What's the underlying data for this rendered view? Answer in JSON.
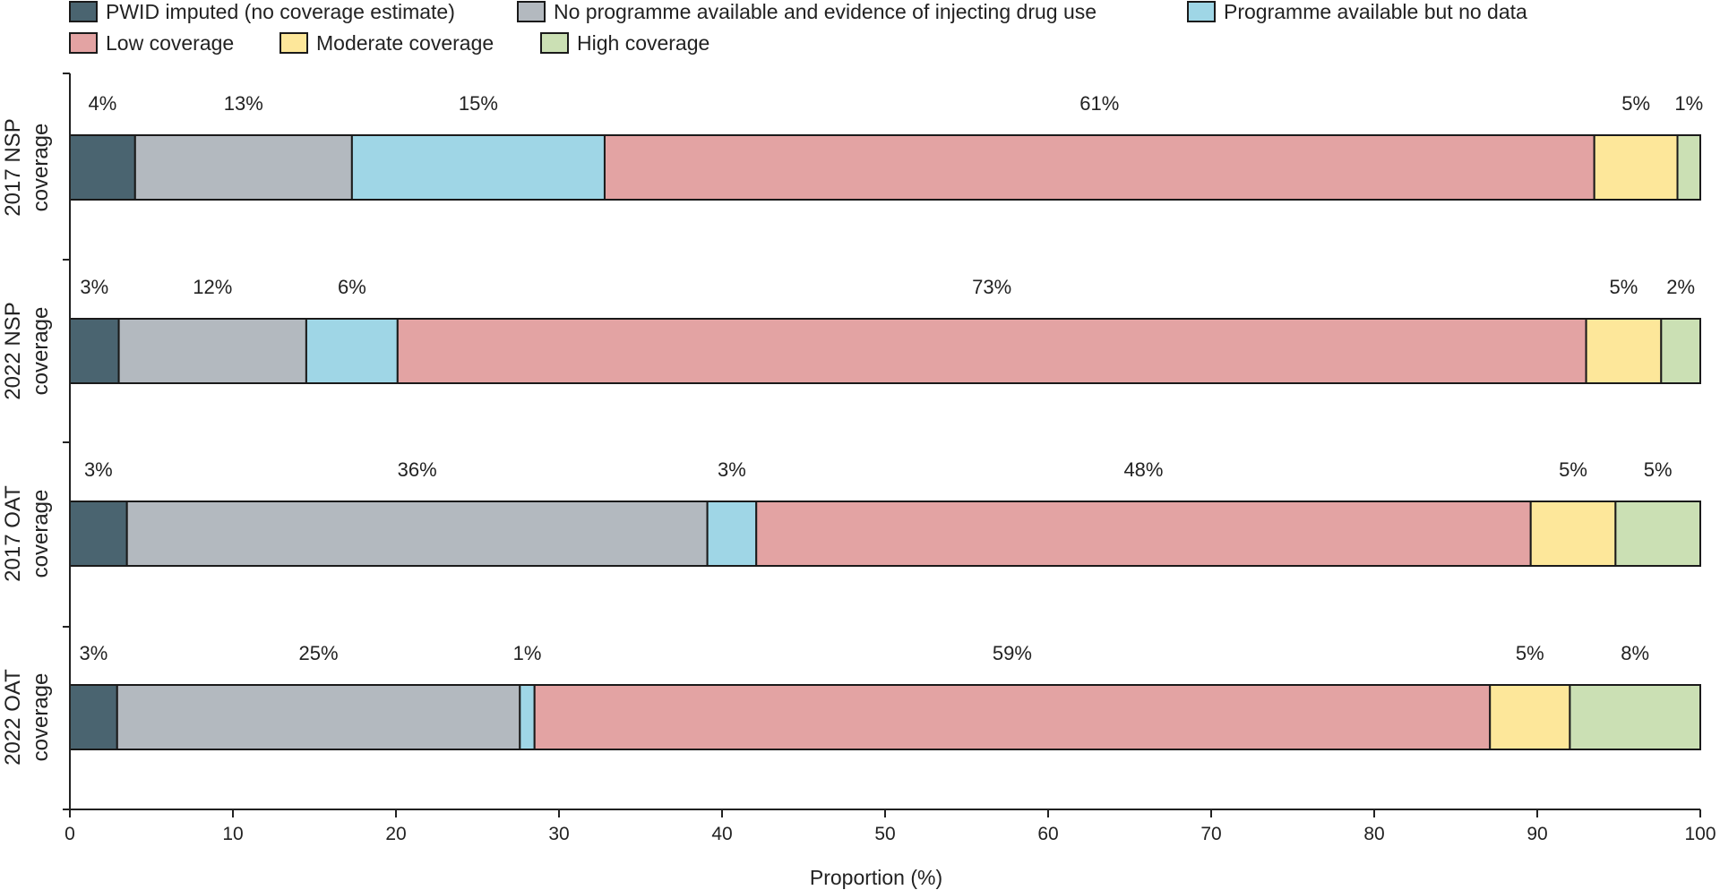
{
  "chart_data": {
    "type": "bar",
    "orientation": "horizontal",
    "stacked": true,
    "title": "",
    "xlabel": "Proportion (%)",
    "ylabel": "",
    "xlim": [
      0,
      100
    ],
    "xticks": [
      0,
      10,
      20,
      30,
      40,
      50,
      60,
      70,
      80,
      90,
      100
    ],
    "grid": false,
    "legend_position": "top",
    "series": [
      {
        "name": "PWID imputed (no coverage estimate)",
        "color": "#4a6470"
      },
      {
        "name": "No programme available and evidence of injecting drug use",
        "color": "#b3b9bf"
      },
      {
        "name": "Programme available but no data",
        "color": "#9fd6e6"
      },
      {
        "name": "Low coverage",
        "color": "#e3a3a3"
      },
      {
        "name": "Moderate coverage",
        "color": "#fde79a"
      },
      {
        "name": "High coverage",
        "color": "#cbe0b4"
      }
    ],
    "bars": [
      {
        "label_line1": "2017 NSP",
        "label_line2": "coverage",
        "values": [
          4.0,
          13.3,
          15.5,
          60.7,
          5.1,
          1.4
        ],
        "labels": [
          "4%",
          "13%",
          "15%",
          "61%",
          "5%",
          "1%"
        ]
      },
      {
        "label_line1": "2022 NSP",
        "label_line2": "coverage",
        "values": [
          3.0,
          11.5,
          5.6,
          72.9,
          4.6,
          2.4
        ],
        "labels": [
          "3%",
          "12%",
          "6%",
          "73%",
          "5%",
          "2%"
        ]
      },
      {
        "label_line1": "2017 OAT",
        "label_line2": "coverage",
        "values": [
          3.5,
          35.6,
          3.0,
          47.5,
          5.2,
          5.2
        ],
        "labels": [
          "3%",
          "36%",
          "3%",
          "48%",
          "5%",
          "5%"
        ]
      },
      {
        "label_line1": "2022 OAT",
        "label_line2": "coverage",
        "values": [
          2.9,
          24.7,
          0.9,
          58.6,
          4.9,
          8.0
        ],
        "labels": [
          "3%",
          "25%",
          "1%",
          "59%",
          "5%",
          "8%"
        ]
      }
    ]
  }
}
